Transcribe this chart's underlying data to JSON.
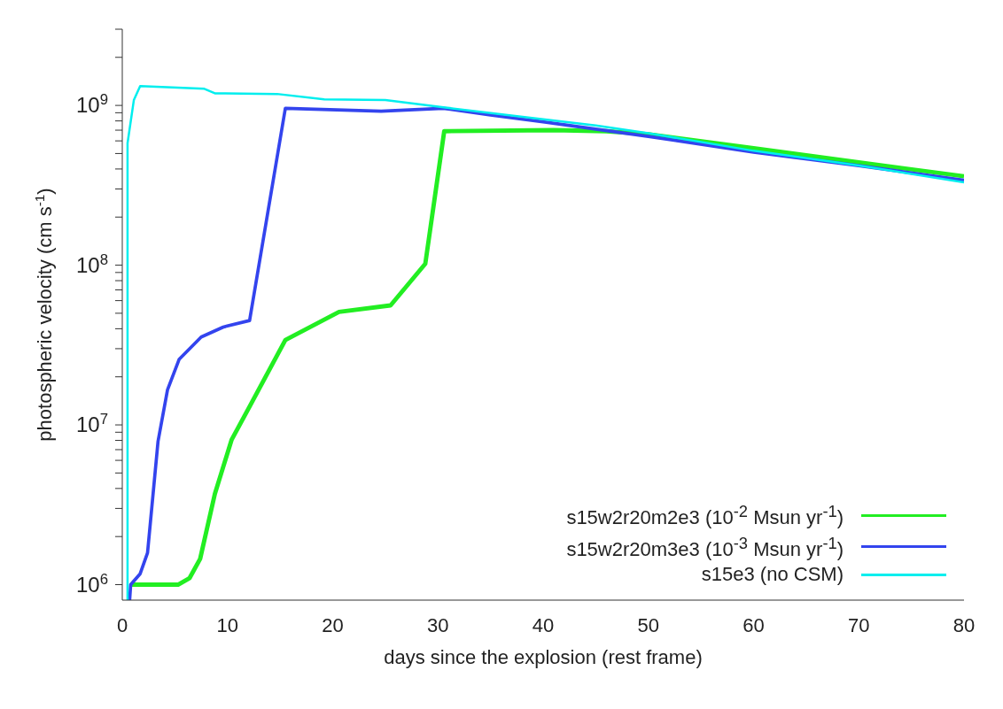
{
  "chart_data": {
    "type": "line",
    "xlabel": "days since the explosion (rest frame)",
    "ylabel": "photospheric velocity (cm s$^{-1}$)",
    "log": "y",
    "grid": false,
    "legend": "bottom right",
    "marker": "none",
    "line_style": "solid",
    "xlim": [
      0,
      80
    ],
    "xticks": [
      0,
      10,
      20,
      30,
      40,
      50,
      60,
      70,
      80
    ],
    "ylim": [
      800000,
      3000000000
    ],
    "yticks": [
      {
        "value": 1000000,
        "label": "10$^{6}$"
      },
      {
        "value": 2000000,
        "label": null
      },
      {
        "value": 3000000,
        "label": null
      },
      {
        "value": 4000000,
        "label": null
      },
      {
        "value": 5000000,
        "label": null
      },
      {
        "value": 6000000,
        "label": null
      },
      {
        "value": 7000000,
        "label": null
      },
      {
        "value": 8000000,
        "label": null
      },
      {
        "value": 9000000,
        "label": null
      },
      {
        "value": 10000000,
        "label": "10$^{7}$"
      },
      {
        "value": 20000000,
        "label": null
      },
      {
        "value": 30000000,
        "label": null
      },
      {
        "value": 40000000,
        "label": null
      },
      {
        "value": 50000000,
        "label": null
      },
      {
        "value": 60000000,
        "label": null
      },
      {
        "value": 70000000,
        "label": null
      },
      {
        "value": 80000000,
        "label": null
      },
      {
        "value": 90000000,
        "label": null
      },
      {
        "value": 100000000,
        "label": "10$^{8}$"
      },
      {
        "value": 200000000,
        "label": null
      },
      {
        "value": 300000000,
        "label": null
      },
      {
        "value": 400000000,
        "label": null
      },
      {
        "value": 500000000,
        "label": null
      },
      {
        "value": 600000000,
        "label": null
      },
      {
        "value": 700000000,
        "label": null
      },
      {
        "value": 800000000,
        "label": null
      },
      {
        "value": 900000000,
        "label": null
      },
      {
        "value": 1000000000,
        "label": "10$^{9}$"
      },
      {
        "value": 2000000000,
        "label": null
      },
      {
        "value": 3000000000,
        "label": null
      }
    ],
    "series": [
      {
        "name": "s15w2r20m2e3 (10$^{-2}$ Msun yr$^{-1}$)",
        "color": "#22ee22",
        "x": [
          0.8,
          5.3,
          6.4,
          7.4,
          8.8,
          10.4,
          12.2,
          15.5,
          20.6,
          25.5,
          28.8,
          30.6,
          41,
          46,
          50,
          60,
          70,
          80
        ],
        "values": [
          1000000,
          1000000,
          1100000,
          1450000,
          3700000,
          8100000,
          13400000,
          34000000,
          51000000,
          56000000,
          102000000,
          690000000,
          700000000,
          690000000,
          660000000,
          540000000,
          440000000,
          360000000
        ]
      },
      {
        "name": "s15w2r20m3e3 (10$^{-3}$ Msun yr$^{-1}$)",
        "color": "#3344ee",
        "x": [
          0.7,
          0.8,
          1.7,
          2.4,
          3.4,
          4.3,
          5.4,
          7.5,
          9.6,
          12.1,
          15.5,
          24.6,
          30.5,
          35,
          40,
          50,
          60,
          70,
          80
        ],
        "values": [
          800000,
          1000000,
          1170000,
          1580000,
          7900000,
          16600000,
          25700000,
          35500000,
          41000000,
          45000000,
          960000000,
          920000000,
          960000000,
          870000000,
          790000000,
          640000000,
          510000000,
          420000000,
          340000000
        ]
      },
      {
        "name": "s15e3 (no CSM)",
        "color": "#00eeee",
        "x": [
          0.5,
          0.5,
          1.1,
          1.7,
          7.8,
          8.8,
          14.7,
          19.2,
          25,
          30.7,
          40,
          45,
          50,
          60,
          70,
          80
        ],
        "values": [
          800000,
          580000000,
          1080000000,
          1320000000,
          1270000000,
          1190000000,
          1180000000,
          1090000000,
          1080000000,
          970000000,
          820000000,
          750000000,
          670000000,
          520000000,
          420000000,
          330000000
        ]
      }
    ]
  }
}
